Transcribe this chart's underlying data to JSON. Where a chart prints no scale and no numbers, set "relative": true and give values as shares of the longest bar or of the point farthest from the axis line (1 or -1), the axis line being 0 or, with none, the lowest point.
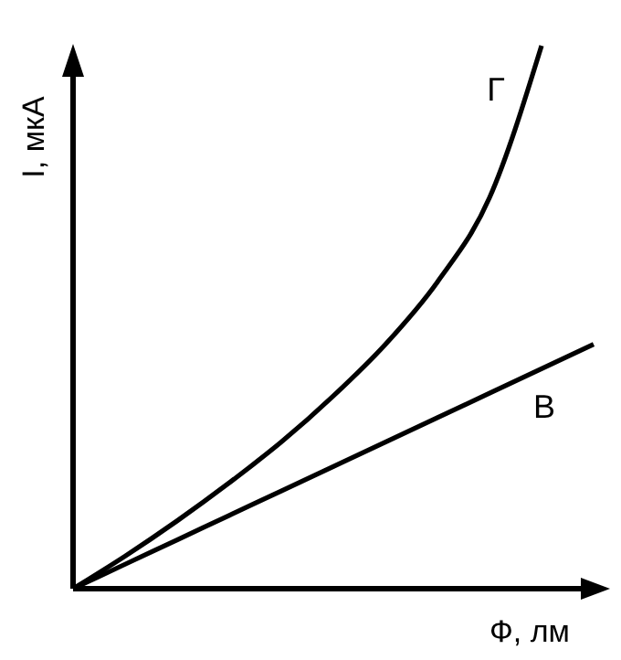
{
  "chart_data": {
    "type": "line",
    "relative": true,
    "xlabel": "Ф, лм",
    "ylabel": "I, мкА",
    "categories": [
      null,
      null,
      null,
      null,
      null,
      null,
      null,
      null,
      null,
      null,
      null
    ],
    "series": [
      {
        "name": "Г",
        "color": "#000000",
        "values": [
          0,
          0.06,
          0.125,
          0.195,
          0.27,
          0.355,
          0.45,
          0.565,
          0.72,
          1,
          null
        ]
      },
      {
        "name": "В",
        "color": "#000000",
        "values": [
          0,
          0.045,
          0.09,
          0.135,
          0.18,
          0.225,
          0.27,
          0.315,
          0.36,
          0.405,
          0.45
        ]
      }
    ],
    "grid": false,
    "marker": "none",
    "line_style": "solid"
  }
}
